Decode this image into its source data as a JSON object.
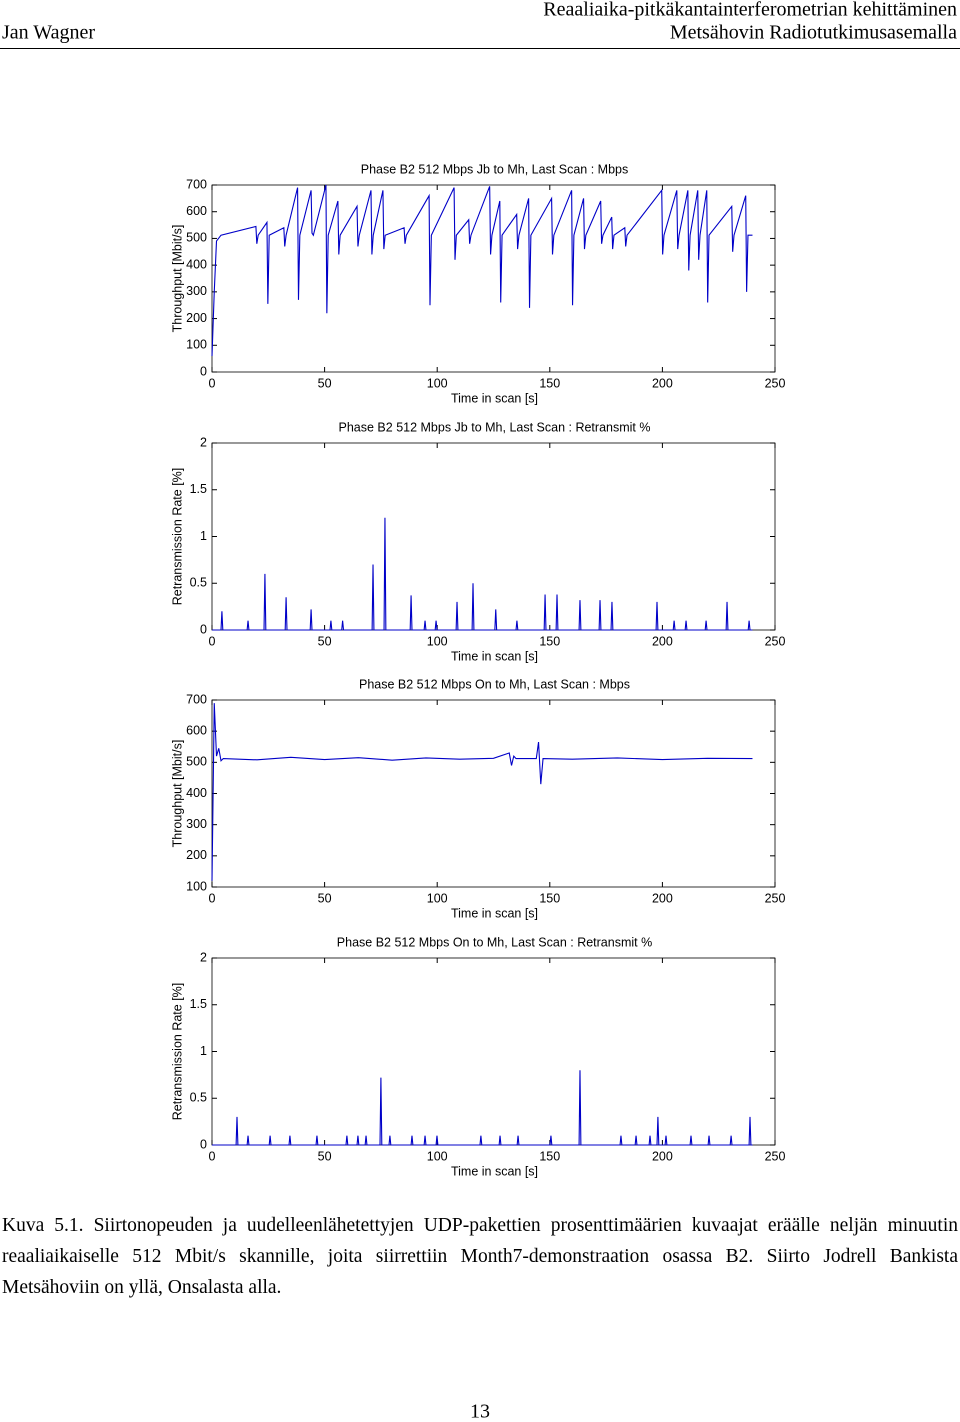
{
  "header": {
    "author": "Jan Wagner",
    "title_line1": "Reaaliaika-pitkäkantainterferometrian kehittäminen",
    "title_line2": "Metsähovin Radiotutkimusasemalla"
  },
  "chart_data": [
    {
      "type": "line",
      "title": "Phase B2 512 Mbps Jb to Mh, Last Scan : Mbps",
      "xlabel": "Time in scan [s]",
      "ylabel": "Throughput [Mbit/s]",
      "color": "#0000c8",
      "xlim": [
        0,
        250
      ],
      "xticks": [
        0,
        50,
        100,
        150,
        200,
        250
      ],
      "ylim": [
        0,
        700
      ],
      "yticks": [
        0,
        100,
        200,
        300,
        400,
        500,
        600,
        700
      ],
      "x": [
        0,
        1,
        2,
        4,
        19.5,
        19.9,
        20.5,
        24.4,
        24.8,
        25.4,
        31.9,
        32.3,
        32.9,
        38,
        38.4,
        39,
        44,
        44.4,
        45,
        50.6,
        51,
        51.6,
        55.9,
        56.3,
        56.9,
        64.4,
        64.8,
        65.4,
        70.6,
        71,
        71.6,
        75.9,
        76.3,
        76.9,
        85.3,
        85.7,
        86.3,
        96.4,
        96.8,
        97.4,
        107.5,
        107.9,
        108.5,
        114,
        114.4,
        115,
        123.3,
        123.7,
        124.3,
        127.8,
        128.2,
        128.8,
        135.3,
        135.7,
        136.3,
        140.6,
        141,
        141.6,
        150.8,
        151.2,
        151.8,
        159.7,
        160.1,
        160.7,
        165,
        165.4,
        166,
        172.6,
        173,
        173.6,
        177.5,
        177.9,
        178.5,
        183.3,
        183.7,
        184.3,
        199.7,
        200.1,
        200.7,
        206.4,
        206.8,
        207.4,
        211.3,
        211.7,
        212.3,
        215.7,
        216.1,
        216.7,
        219.7,
        220.1,
        220.7,
        230.8,
        231.2,
        231.8,
        237,
        237.4,
        238,
        240
      ],
      "values": [
        60,
        300,
        490,
        512,
        545,
        480,
        512,
        560,
        255,
        512,
        540,
        470,
        512,
        690,
        270,
        512,
        680,
        520,
        512,
        700,
        220,
        512,
        640,
        440,
        512,
        620,
        470,
        512,
        680,
        440,
        512,
        680,
        460,
        512,
        540,
        480,
        512,
        660,
        250,
        512,
        690,
        420,
        512,
        570,
        480,
        512,
        695,
        440,
        512,
        640,
        260,
        512,
        590,
        460,
        512,
        650,
        240,
        512,
        650,
        440,
        512,
        680,
        250,
        512,
        650,
        460,
        512,
        640,
        480,
        512,
        580,
        460,
        512,
        540,
        470,
        512,
        680,
        440,
        512,
        680,
        460,
        512,
        680,
        380,
        512,
        680,
        420,
        512,
        680,
        260,
        512,
        620,
        450,
        512,
        660,
        300,
        512,
        512
      ]
    },
    {
      "type": "line",
      "title": "Phase B2 512 Mbps Jb to Mh, Last Scan : Retransmit %",
      "xlabel": "Time in scan [s]",
      "ylabel": "Retransmission Rate [%]",
      "color": "#0000c8",
      "xlim": [
        0,
        250
      ],
      "xticks": [
        0,
        50,
        100,
        150,
        200,
        250
      ],
      "ylim": [
        0,
        2
      ],
      "yticks": [
        0,
        0.5,
        1,
        1.5,
        2
      ],
      "x": [
        0,
        4,
        4.4,
        4.8,
        15.6,
        16,
        16.4,
        23.1,
        23.5,
        23.9,
        32.5,
        32.9,
        33.3,
        43.6,
        44,
        44.4,
        52.4,
        52.8,
        53.2,
        57.6,
        58,
        58.4,
        71.1,
        71.5,
        71.9,
        76.4,
        76.8,
        77.2,
        88,
        88.4,
        88.8,
        94.2,
        94.6,
        95,
        99.1,
        99.5,
        99.9,
        108.4,
        108.8,
        109.2,
        115.5,
        115.9,
        116.3,
        125.6,
        126,
        126.4,
        135,
        135.4,
        135.8,
        147.5,
        147.9,
        148.3,
        152.8,
        153.2,
        153.6,
        163,
        163.4,
        163.8,
        171.9,
        172.3,
        172.7,
        177.2,
        177.6,
        178,
        197.2,
        197.6,
        198,
        204.8,
        205.2,
        205.6,
        210.1,
        210.5,
        210.9,
        219,
        219.4,
        219.8,
        228.3,
        228.7,
        229.1,
        238.1,
        238.5,
        238.9,
        240
      ],
      "values": [
        0,
        0,
        0.2,
        0,
        0,
        0.1,
        0,
        0,
        0.6,
        0,
        0,
        0.35,
        0,
        0,
        0.22,
        0,
        0,
        0.1,
        0,
        0,
        0.1,
        0,
        0,
        0.7,
        0,
        0,
        1.2,
        0,
        0,
        0.37,
        0,
        0,
        0.1,
        0,
        0,
        0.1,
        0,
        0,
        0.3,
        0,
        0,
        0.5,
        0,
        0,
        0.22,
        0,
        0,
        0.1,
        0,
        0,
        0.38,
        0,
        0,
        0.38,
        0,
        0,
        0.32,
        0,
        0,
        0.32,
        0,
        0,
        0.3,
        0,
        0,
        0.3,
        0,
        0,
        0.1,
        0,
        0,
        0.1,
        0,
        0,
        0.1,
        0,
        0,
        0.3,
        0,
        0,
        0.1,
        0,
        0
      ]
    },
    {
      "type": "line",
      "title": "Phase B2 512 Mbps On to Mh, Last Scan : Mbps",
      "xlabel": "Time in scan [s]",
      "ylabel": "Throughput [Mbit/s]",
      "color": "#0000c8",
      "xlim": [
        0,
        250
      ],
      "xticks": [
        0,
        50,
        100,
        150,
        200,
        250
      ],
      "ylim": [
        100,
        700
      ],
      "yticks": [
        100,
        200,
        300,
        400,
        500,
        600,
        700
      ],
      "x": [
        0,
        1,
        2,
        3,
        4,
        5,
        20,
        35,
        50,
        65,
        80,
        95,
        110,
        125,
        132,
        133,
        134,
        135,
        144,
        145,
        146,
        147,
        160,
        180,
        200,
        220,
        240
      ],
      "values": [
        120,
        690,
        520,
        545,
        505,
        512,
        508,
        516,
        509,
        515,
        507,
        514,
        510,
        513,
        530,
        490,
        520,
        512,
        512,
        565,
        430,
        512,
        510,
        514,
        509,
        513,
        512
      ]
    },
    {
      "type": "line",
      "title": "Phase B2 512 Mbps On to Mh, Last Scan : Retransmit %",
      "xlabel": "Time in scan [s]",
      "ylabel": "Retransmission Rate [%]",
      "color": "#0000c8",
      "xlim": [
        0,
        250
      ],
      "xticks": [
        0,
        50,
        100,
        150,
        200,
        250
      ],
      "ylim": [
        0,
        2
      ],
      "yticks": [
        0,
        0.5,
        1,
        1.5,
        2
      ],
      "x": [
        0,
        10.7,
        11.1,
        11.5,
        15.6,
        16,
        16.4,
        25.4,
        25.8,
        26.2,
        34.2,
        34.6,
        35,
        46.2,
        46.6,
        47,
        59.5,
        59.9,
        60.3,
        64.4,
        64.8,
        65.2,
        68,
        68.4,
        68.8,
        74.6,
        75,
        75.4,
        78.6,
        79,
        79.4,
        88.4,
        88.8,
        89.2,
        94.2,
        94.6,
        95,
        99.5,
        99.9,
        100.3,
        119,
        119.4,
        119.8,
        127.5,
        127.9,
        128.3,
        135.5,
        135.9,
        136.3,
        150.1,
        150.5,
        150.9,
        163,
        163.4,
        163.8,
        181.2,
        181.6,
        182,
        187.9,
        188.3,
        188.7,
        194.1,
        194.5,
        194.9,
        197.6,
        198,
        198.4,
        201.2,
        201.6,
        202,
        212.3,
        212.7,
        213.1,
        220.3,
        220.7,
        221.1,
        230.1,
        230.5,
        230.9,
        238.5,
        238.9,
        239.3,
        240
      ],
      "values": [
        0,
        0,
        0.3,
        0,
        0,
        0.1,
        0,
        0,
        0.1,
        0,
        0,
        0.1,
        0,
        0,
        0.1,
        0,
        0,
        0.1,
        0,
        0,
        0.1,
        0,
        0,
        0.1,
        0,
        0,
        0.72,
        0,
        0,
        0.1,
        0,
        0,
        0.1,
        0,
        0,
        0.1,
        0,
        0,
        0.1,
        0,
        0,
        0.1,
        0,
        0,
        0.1,
        0,
        0,
        0.1,
        0,
        0,
        0.1,
        0,
        0,
        0.8,
        0,
        0,
        0.1,
        0,
        0,
        0.1,
        0,
        0,
        0.1,
        0,
        0,
        0.3,
        0,
        0,
        0.1,
        0,
        0,
        0.1,
        0,
        0,
        0.1,
        0,
        0,
        0.1,
        0,
        0,
        0.3,
        0,
        0
      ]
    }
  ],
  "caption": "Kuva 5.1. Siirtonopeuden ja uudelleenlähetettyjen UDP-pakettien prosenttimäärien kuvaajat eräälle neljän minuutin reaaliaikaiselle 512 Mbit/s skannille, joita siirrettiin Month7-demonstraation osassa B2. Siirto Jodrell Bankista Metsähoviin on yllä, Onsalasta alla.",
  "page_number": "13"
}
